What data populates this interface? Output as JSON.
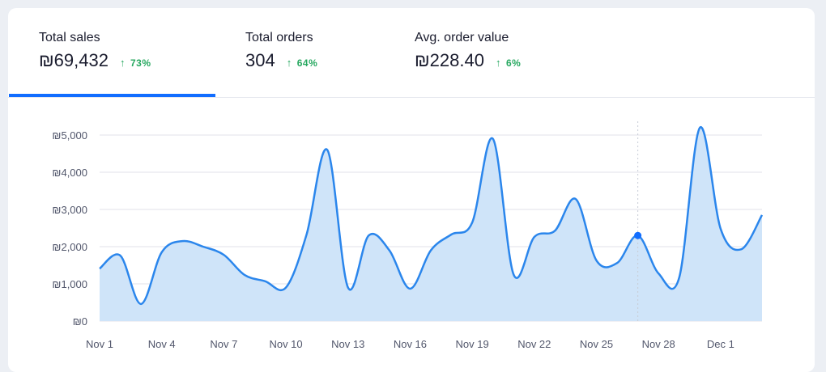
{
  "tabs": [
    {
      "label": "Total sales",
      "value": "₪69,432",
      "change": "73%",
      "trend": "up",
      "active": true
    },
    {
      "label": "Total orders",
      "value": "304",
      "change": "64%",
      "trend": "up",
      "active": false
    },
    {
      "label": "Avg. order value",
      "value": "₪228.40",
      "change": "6%",
      "trend": "up",
      "active": false
    }
  ],
  "icons": {
    "trend": "arrow-up-icon"
  },
  "colors": {
    "accent": "#116dff",
    "line": "#2b86ec",
    "fill": "#cfe4f9",
    "positive": "#27a860"
  },
  "chart_data": {
    "type": "area",
    "title": "",
    "xlabel": "",
    "ylabel": "",
    "ylim": [
      0,
      5000
    ],
    "y_ticks": [
      "₪0",
      "₪1,000",
      "₪2,000",
      "₪3,000",
      "₪4,000",
      "₪5,000"
    ],
    "y_tick_values": [
      0,
      1000,
      2000,
      3000,
      4000,
      5000
    ],
    "x_tick_labels": [
      "Nov 1",
      "Nov 4",
      "Nov 7",
      "Nov 10",
      "Nov 13",
      "Nov 16",
      "Nov 19",
      "Nov 22",
      "Nov 25",
      "Nov 28",
      "Dec 1"
    ],
    "x_tick_indices": [
      0,
      3,
      6,
      9,
      12,
      15,
      18,
      21,
      24,
      27,
      30
    ],
    "x": [
      "Nov 1",
      "Nov 2",
      "Nov 3",
      "Nov 4",
      "Nov 5",
      "Nov 6",
      "Nov 7",
      "Nov 8",
      "Nov 9",
      "Nov 10",
      "Nov 11",
      "Nov 12",
      "Nov 13",
      "Nov 14",
      "Nov 15",
      "Nov 16",
      "Nov 17",
      "Nov 18",
      "Nov 19",
      "Nov 20",
      "Nov 21",
      "Nov 22",
      "Nov 23",
      "Nov 24",
      "Nov 25",
      "Nov 26",
      "Nov 27",
      "Nov 28",
      "Nov 29",
      "Nov 30",
      "Dec 1",
      "Dec 2",
      "Dec 3"
    ],
    "series": [
      {
        "name": "Total sales",
        "values": [
          1410,
          1760,
          460,
          1850,
          2150,
          2000,
          1780,
          1240,
          1070,
          900,
          2330,
          4600,
          900,
          2300,
          1900,
          870,
          1900,
          2330,
          2650,
          4900,
          1250,
          2260,
          2430,
          3280,
          1630,
          1560,
          2300,
          1280,
          1170,
          5200,
          2480,
          1930,
          2850
        ]
      }
    ],
    "highlighted_index": 26,
    "grid": true
  }
}
